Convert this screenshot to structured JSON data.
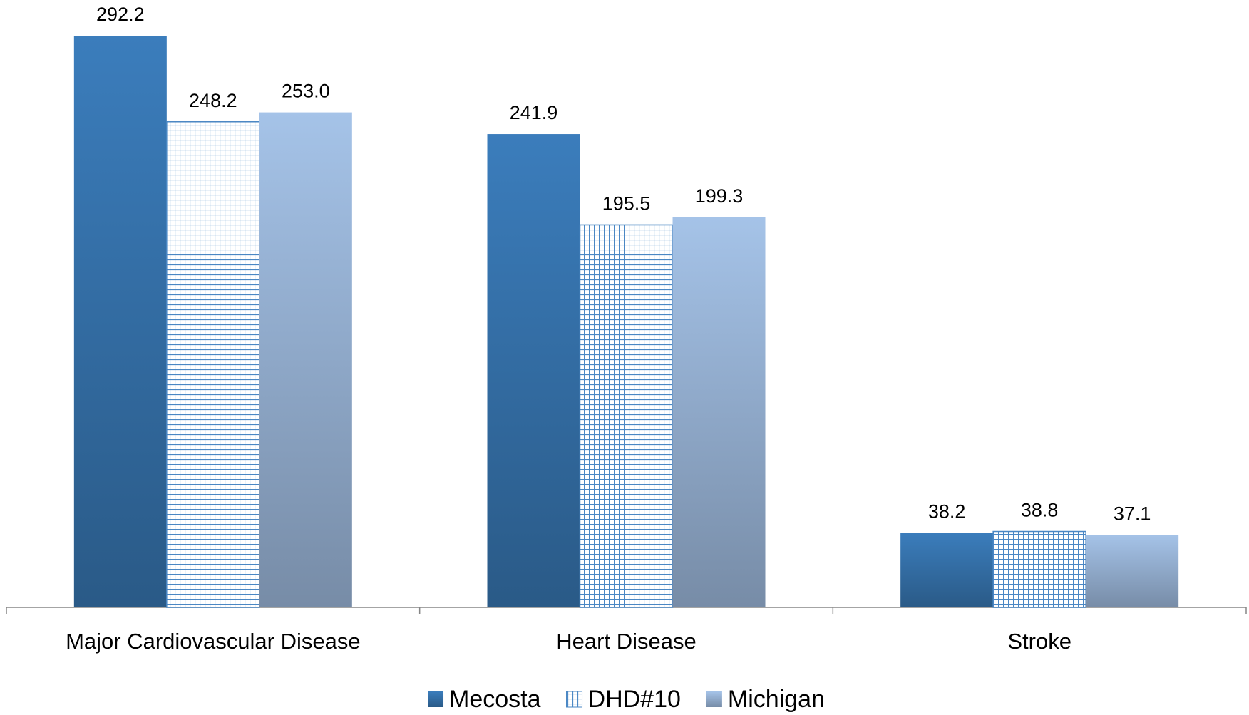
{
  "chart_data": {
    "type": "bar",
    "categories": [
      "Major Cardiovascular Disease",
      "Heart Disease",
      "Stroke"
    ],
    "series": [
      {
        "name": "Mecosta",
        "color": "#3b7dbc",
        "fill": "gradient",
        "values": [
          292.2,
          241.9,
          38.2
        ],
        "value_labels": [
          "292.2",
          "241.9",
          "38.2"
        ]
      },
      {
        "name": "DHD#10",
        "color": "#4a87c4",
        "fill": "grid",
        "values": [
          248.2,
          195.5,
          38.8
        ],
        "value_labels": [
          "248.2",
          "195.5",
          "38.8"
        ]
      },
      {
        "name": "Michigan",
        "color": "#a5c3e8",
        "fill": "gradient",
        "values": [
          253.0,
          199.3,
          37.1
        ],
        "value_labels": [
          "253.0",
          "199.3",
          "37.1"
        ]
      }
    ],
    "legend": "bottom"
  }
}
